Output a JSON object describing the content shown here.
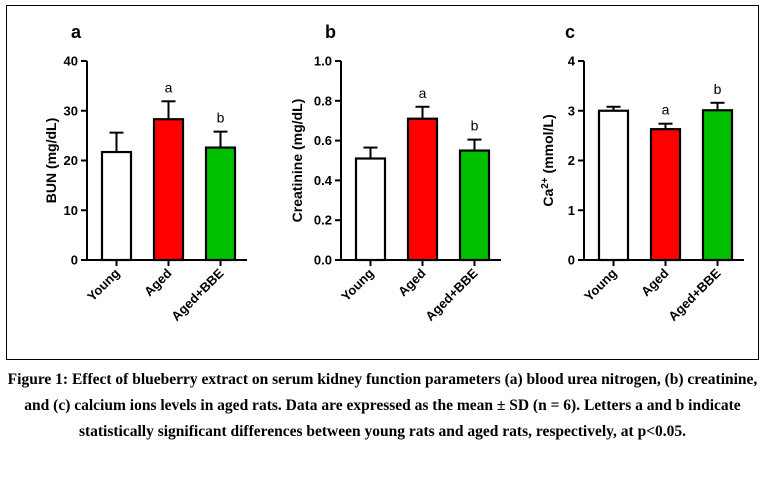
{
  "caption": "Figure 1: Effect of blueberry extract on serum kidney function parameters (a) blood urea nitrogen, (b) creatinine, and (c) calcium ions levels in aged rats. Data are expressed as the mean ± SD (n = 6). Letters a and b indicate statistically significant differences between young rats and aged rats, respectively, at p<0.05.",
  "colors": {
    "young": "#ffffff",
    "aged": "#ff0000",
    "aged_bbe": "#00c000",
    "stroke": "#000000"
  },
  "chart_data": [
    {
      "type": "bar",
      "panel_label": "a",
      "ylabel": "BUN (mg/dL)",
      "ylim": [
        0,
        40
      ],
      "yticks": [
        0,
        10,
        20,
        30,
        40
      ],
      "ytick_labels": [
        "0",
        "10",
        "20",
        "30",
        "40"
      ],
      "categories": [
        "Young",
        "Aged",
        "Aged+BBE"
      ],
      "values": [
        21.7,
        28.3,
        22.6
      ],
      "errors": [
        3.9,
        3.6,
        3.2
      ],
      "significance": [
        "",
        "a",
        "b"
      ]
    },
    {
      "type": "bar",
      "panel_label": "b",
      "ylabel": "Creatinine (mg/dL)",
      "ylim": [
        0,
        1.0
      ],
      "yticks": [
        0,
        0.2,
        0.4,
        0.6,
        0.8,
        1.0
      ],
      "ytick_labels": [
        "0.0",
        "0.2",
        "0.4",
        "0.6",
        "0.8",
        "1.0"
      ],
      "categories": [
        "Young",
        "Aged",
        "Aged+BBE"
      ],
      "values": [
        0.51,
        0.71,
        0.55
      ],
      "errors": [
        0.055,
        0.06,
        0.055
      ],
      "significance": [
        "",
        "a",
        "b"
      ]
    },
    {
      "type": "bar",
      "panel_label": "c",
      "ylabel": "Ca2+ (mmol/L)",
      "ylim": [
        0,
        4
      ],
      "yticks": [
        0,
        1,
        2,
        3,
        4
      ],
      "ytick_labels": [
        "0",
        "1",
        "2",
        "3",
        "4"
      ],
      "categories": [
        "Young",
        "Aged",
        "Aged+BBE"
      ],
      "values": [
        3.0,
        2.63,
        3.01
      ],
      "errors": [
        0.08,
        0.11,
        0.15
      ],
      "significance": [
        "",
        "a",
        "b"
      ]
    }
  ]
}
